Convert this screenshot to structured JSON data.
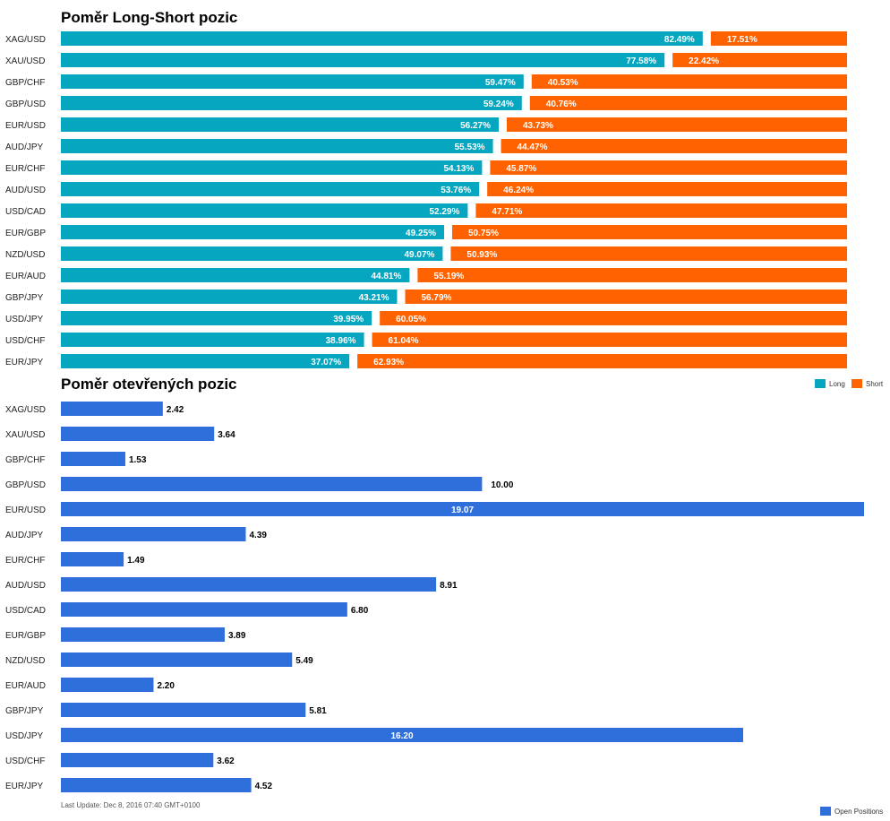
{
  "chart_data": [
    {
      "type": "bar",
      "orientation": "horizontal",
      "stacked": true,
      "title": "Poměr Long-Short pozic",
      "categories": [
        "XAG/USD",
        "XAU/USD",
        "GBP/CHF",
        "GBP/USD",
        "EUR/USD",
        "AUD/JPY",
        "EUR/CHF",
        "AUD/USD",
        "USD/CAD",
        "EUR/GBP",
        "NZD/USD",
        "EUR/AUD",
        "GBP/JPY",
        "USD/JPY",
        "USD/CHF",
        "EUR/JPY"
      ],
      "series": [
        {
          "name": "Long",
          "color": "#06a6c0",
          "values": [
            82.49,
            77.58,
            59.47,
            59.24,
            56.27,
            55.53,
            54.13,
            53.76,
            52.29,
            49.25,
            49.07,
            44.81,
            43.21,
            39.95,
            38.96,
            37.07
          ]
        },
        {
          "name": "Short",
          "color": "#ff6200",
          "values": [
            17.51,
            22.42,
            40.53,
            40.76,
            43.73,
            44.47,
            45.87,
            46.24,
            47.71,
            50.75,
            50.93,
            55.19,
            56.79,
            60.05,
            61.04,
            62.93
          ]
        }
      ],
      "value_suffix": "%",
      "xlim": [
        0,
        100
      ],
      "legend": "right",
      "grid": false
    },
    {
      "type": "bar",
      "orientation": "horizontal",
      "title": "Poměr otevřených pozic",
      "categories": [
        "XAG/USD",
        "XAU/USD",
        "GBP/CHF",
        "GBP/USD",
        "EUR/USD",
        "AUD/JPY",
        "EUR/CHF",
        "AUD/USD",
        "USD/CAD",
        "EUR/GBP",
        "NZD/USD",
        "EUR/AUD",
        "GBP/JPY",
        "USD/JPY",
        "USD/CHF",
        "EUR/JPY"
      ],
      "series": [
        {
          "name": "Open Positions",
          "color": "#2e6fdc",
          "values": [
            2.42,
            3.64,
            1.53,
            10.0,
            19.07,
            4.39,
            1.49,
            8.91,
            6.8,
            3.89,
            5.49,
            2.2,
            5.81,
            16.2,
            3.62,
            4.52
          ]
        }
      ],
      "xlim": [
        0,
        19.07
      ],
      "legend": "bottom-right",
      "grid": false
    }
  ],
  "footer": "Last Update: Dec 8, 2016 07:40 GMT+0100"
}
